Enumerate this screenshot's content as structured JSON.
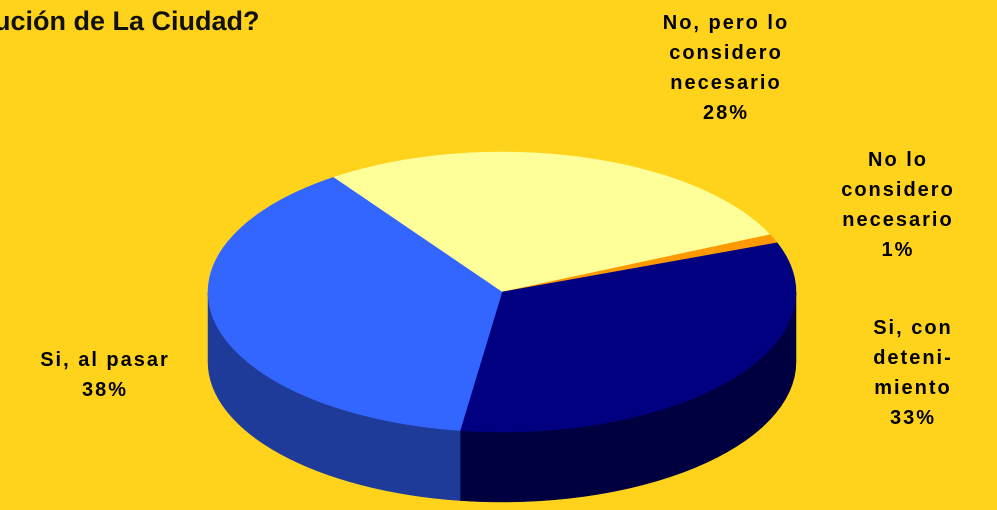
{
  "chart_data": {
    "type": "pie",
    "title": "ución de La Ciudad?",
    "slices": [
      {
        "label_lines": [
          "No,  pero lo",
          "considero",
          "necesario"
        ],
        "pct_label": "28%",
        "value": 28,
        "color": "#FFFF99",
        "side": "#E6E680"
      },
      {
        "label_lines": [
          "No lo",
          "considero",
          "necesario"
        ],
        "pct_label": "1%",
        "value": 1,
        "color": "#FF9900",
        "side": "#CC7A00"
      },
      {
        "label_lines": [
          "Si, con",
          "deteni-",
          "miento"
        ],
        "pct_label": "33%",
        "value": 33,
        "color": "#000080",
        "side": "#000040"
      },
      {
        "label_lines": [
          "Si, al pasar"
        ],
        "pct_label": "38%",
        "value": 38,
        "color": "#3366FF",
        "side": "#1F3B99"
      }
    ],
    "legend": "none"
  }
}
